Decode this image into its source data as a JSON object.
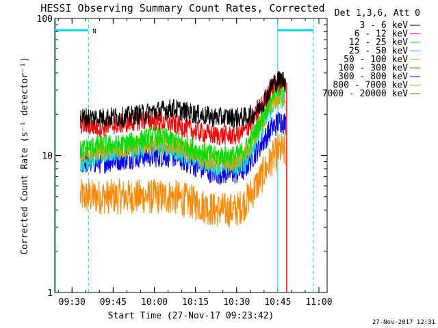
{
  "chart_data": {
    "type": "line",
    "title": "HESSI Observing Summary Count Rates, Corrected",
    "xlabel": "Start Time (27-Nov-17 09:23:42)",
    "ylabel": "Corrected Count Rate (s⁻¹ detector⁻¹)",
    "yscale": "log",
    "ylim": [
      1,
      100
    ],
    "y_ticks": [
      "1",
      "10",
      "100"
    ],
    "xlim": [
      "09:23:42",
      "11:03"
    ],
    "x_ticks": [
      "09:30",
      "09:45",
      "10:00",
      "10:15",
      "10:30",
      "10:45",
      "11:00"
    ],
    "legend_title": "Det 1,3,6, Att 0",
    "legend_position": "outside-top-right",
    "timestamp": "27-Nov-2017 12:31",
    "flag_label": "N",
    "data_range": [
      "09:33",
      "10:48"
    ],
    "night_flag_segments": [
      [
        "09:23:42",
        "09:36"
      ],
      [
        "10:45",
        "10:58"
      ]
    ],
    "night_boundaries": [
      "09:36",
      "10:45",
      "10:58"
    ],
    "night_level": 82,
    "series": [
      {
        "name": "3 - 6 keV",
        "color": "#000000",
        "x": [
          "09:33",
          "09:40",
          "09:48",
          "09:55",
          "10:00",
          "10:07",
          "10:15",
          "10:22",
          "10:30",
          "10:33",
          "10:36",
          "10:40",
          "10:43",
          "10:46",
          "10:48"
        ],
        "values": [
          19,
          19,
          19,
          20,
          21,
          22,
          20,
          19,
          19,
          19,
          20,
          25,
          33,
          36,
          35
        ]
      },
      {
        "name": "6 - 12 keV",
        "color": "#ff00ff",
        "x": [],
        "values": []
      },
      {
        "name": "12 - 25 keV",
        "color": "#00dd00",
        "x": [
          "09:33",
          "09:40",
          "09:48",
          "09:55",
          "10:00",
          "10:07",
          "10:15",
          "10:22",
          "10:30",
          "10:33",
          "10:36",
          "10:40",
          "10:43",
          "10:46",
          "10:48"
        ],
        "values": [
          11,
          12,
          12,
          13,
          14,
          13,
          11,
          10,
          10,
          11,
          14,
          20,
          28,
          32,
          31
        ]
      },
      {
        "name": "25 - 50 keV",
        "color": "#00dddd",
        "x": [
          "09:33",
          "09:40",
          "09:48",
          "09:55",
          "10:00",
          "10:07",
          "10:15",
          "10:22",
          "10:30",
          "10:33",
          "10:36",
          "10:40",
          "10:43",
          "10:46",
          "10:48"
        ],
        "values": [
          9,
          10,
          11,
          11,
          12,
          11,
          9.5,
          8.5,
          8.5,
          9,
          12,
          17,
          23,
          26,
          25
        ]
      },
      {
        "name": "50 - 100 keV",
        "color": "#ccaa00",
        "x": [
          "09:33",
          "09:40",
          "09:48",
          "09:55",
          "10:00",
          "10:07",
          "10:15",
          "10:22",
          "10:30",
          "10:33",
          "10:36",
          "10:40",
          "10:43",
          "10:46",
          "10:48"
        ],
        "values": [
          10,
          11,
          11,
          12,
          12,
          12,
          10,
          9,
          9,
          10,
          13,
          18,
          24,
          27,
          26
        ]
      },
      {
        "name": "100 - 300 keV",
        "color": "#ff0000",
        "x": [
          "09:33",
          "09:40",
          "09:48",
          "09:55",
          "10:00",
          "10:07",
          "10:15",
          "10:22",
          "10:30",
          "10:33",
          "10:36",
          "10:40",
          "10:43",
          "10:46",
          "10:48"
        ],
        "values": [
          17,
          16,
          17,
          18,
          18,
          17,
          15,
          14,
          14,
          15,
          18,
          25,
          32,
          35,
          34
        ]
      },
      {
        "name": "300 - 800 keV",
        "color": "#0000ff",
        "x": [
          "09:33",
          "09:40",
          "09:48",
          "09:55",
          "10:00",
          "10:07",
          "10:15",
          "10:22",
          "10:30",
          "10:33",
          "10:36",
          "10:40",
          "10:43",
          "10:46",
          "10:48"
        ],
        "values": [
          9,
          9,
          9.5,
          10,
          10,
          10,
          8.5,
          7.5,
          7.5,
          8,
          10,
          13,
          16,
          18,
          17
        ]
      },
      {
        "name": "800 - 7000 keV",
        "color": "#ff8800",
        "x": [
          "09:33",
          "09:40",
          "09:48",
          "09:55",
          "10:00",
          "10:07",
          "10:15",
          "10:22",
          "10:30",
          "10:33",
          "10:36",
          "10:40",
          "10:43",
          "10:46",
          "10:48"
        ],
        "values": [
          5,
          5,
          5,
          5,
          5,
          5,
          4.5,
          4,
          4,
          4.5,
          5.5,
          7.5,
          9.5,
          11,
          10.5
        ]
      },
      {
        "name": "7000 - 20000 keV",
        "color": "#aa6600",
        "x": [],
        "values": []
      }
    ]
  }
}
